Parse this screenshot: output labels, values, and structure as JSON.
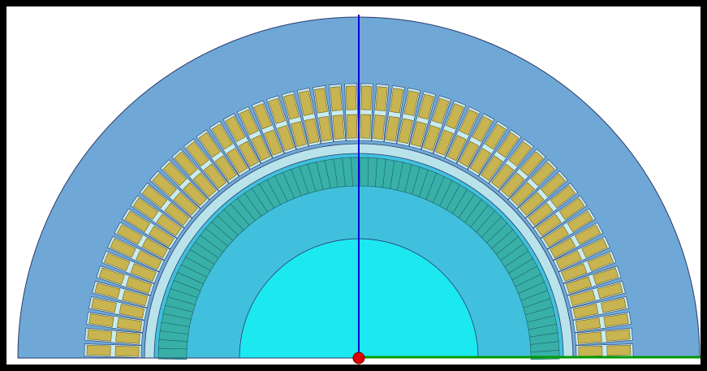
{
  "view": {
    "background": "#ffffff",
    "frame_color": "#000000"
  },
  "model": {
    "stator_color": "#6fa8d6",
    "stator_slot_count": 54,
    "stator_coil_color": "#c8b450",
    "stator_insulation_color": "#c8ecf0",
    "airgap_color": "#b9e3ea",
    "rotor_color": "#40c0dc",
    "rotor_bar_count": 72,
    "rotor_bar_color": "#38b0a8",
    "shaft_color": "#1ce8f0",
    "outline_color": "#2a3a6a"
  },
  "axes": {
    "vertical_axis_color": "#0000dd",
    "horizontal_axis_color": "#009900",
    "origin_marker_color": "#dd0000"
  }
}
